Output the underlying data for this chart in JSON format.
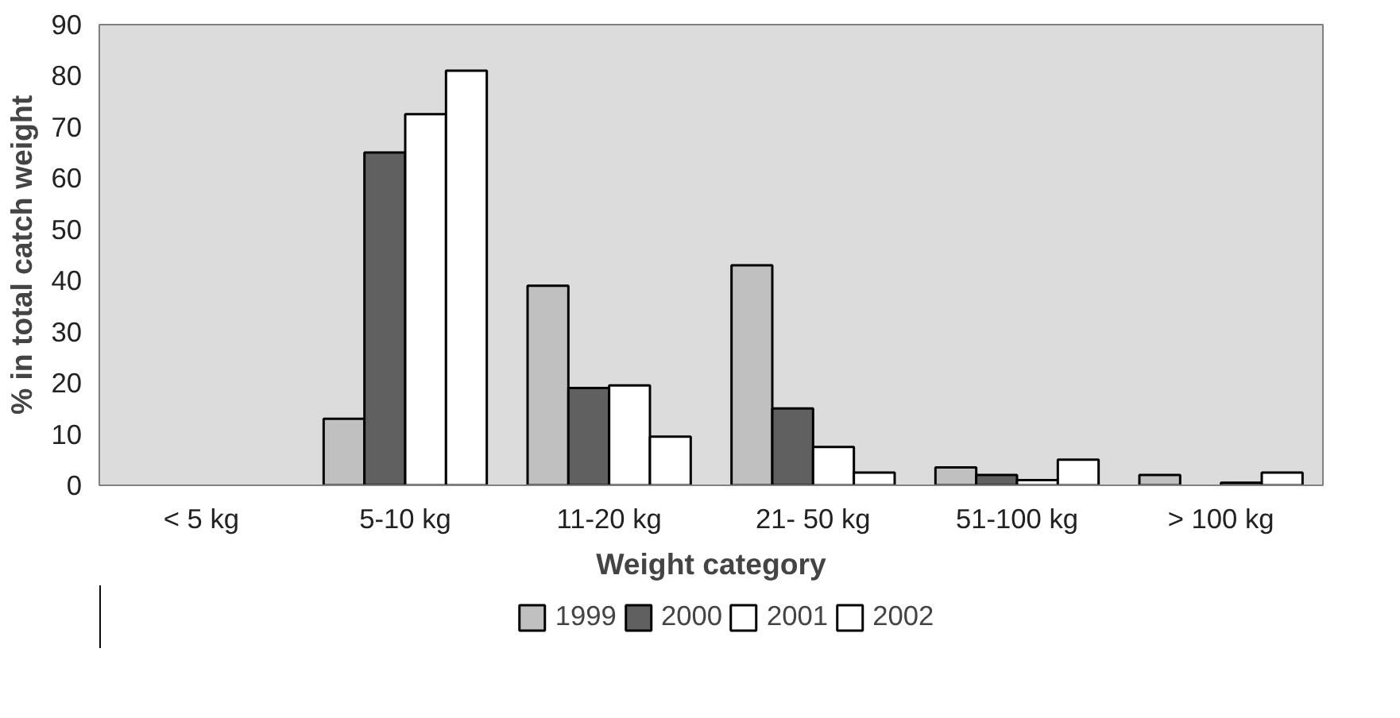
{
  "chart_data": {
    "type": "bar",
    "xlabel": "Weight category",
    "ylabel": "% in total catch weight",
    "categories": [
      "< 5 kg",
      "5-10 kg",
      "11-20 kg",
      "21- 50 kg",
      "51-100 kg",
      "> 100 kg"
    ],
    "series": [
      {
        "name": "1999",
        "color": "#c0c0c0",
        "values": [
          null,
          13,
          39,
          43,
          3.5,
          2
        ]
      },
      {
        "name": "2000",
        "color": "#606060",
        "values": [
          null,
          65,
          19,
          15,
          2,
          null
        ]
      },
      {
        "name": "2001",
        "color": "#ffffff",
        "values": [
          null,
          72.5,
          19.5,
          7.5,
          1,
          0.5
        ]
      },
      {
        "name": "2002",
        "color": "#ffffff",
        "values": [
          null,
          81,
          9.5,
          2.5,
          5,
          2.5
        ]
      }
    ],
    "ylim": [
      0,
      90
    ],
    "yticks": [
      0,
      10,
      20,
      30,
      40,
      50,
      60,
      70,
      80,
      90
    ],
    "grid": false,
    "legend": "bottom"
  }
}
